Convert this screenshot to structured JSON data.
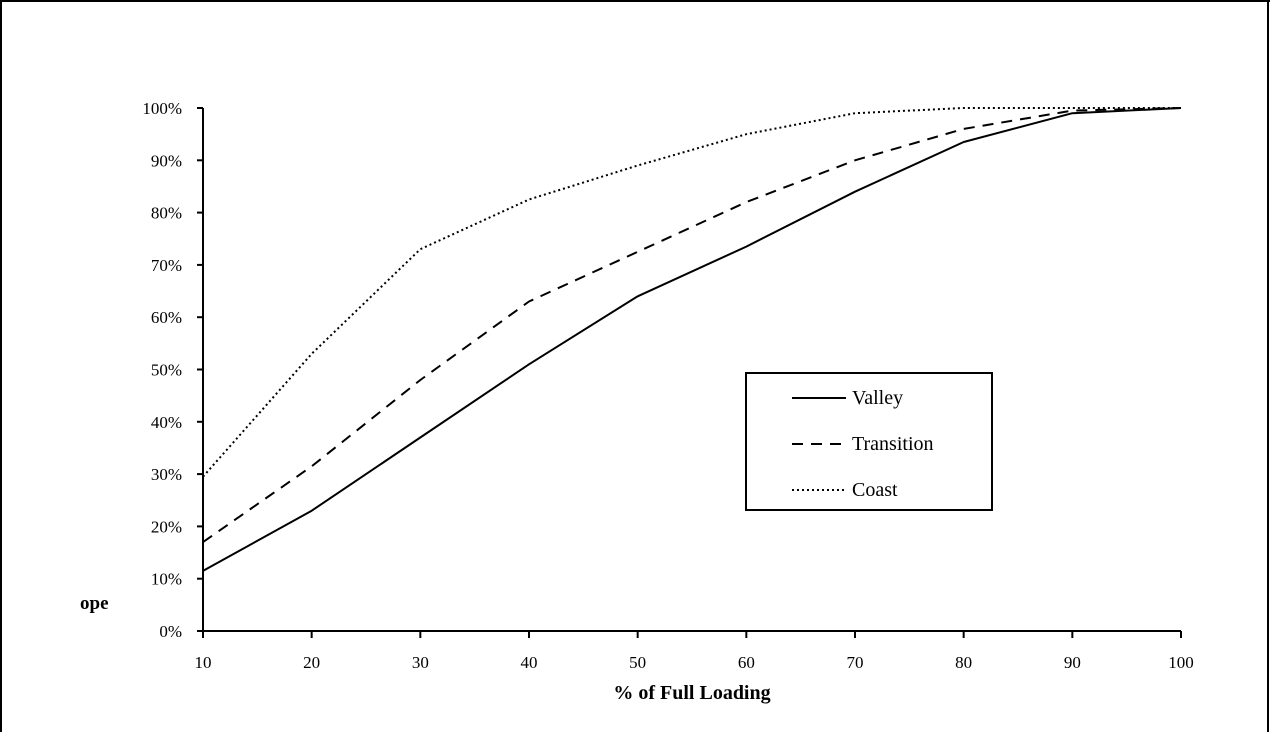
{
  "chart_data": {
    "type": "line",
    "title": "",
    "xlabel": "% of Full Loading",
    "ylabel": "",
    "x": [
      10,
      20,
      30,
      40,
      50,
      60,
      70,
      80,
      90,
      100
    ],
    "xlim": [
      10,
      100
    ],
    "ylim": [
      0,
      100
    ],
    "x_ticks": [
      "10",
      "20",
      "30",
      "40",
      "50",
      "60",
      "70",
      "80",
      "90",
      "100"
    ],
    "y_ticks": [
      "0%",
      "10%",
      "20%",
      "30%",
      "40%",
      "50%",
      "60%",
      "70%",
      "80%",
      "90%",
      "100%"
    ],
    "grid": false,
    "legend_position": "center-right",
    "series": [
      {
        "name": "Valley",
        "style": "solid",
        "values": [
          11.5,
          23,
          37,
          51,
          64,
          73.5,
          84,
          93.5,
          99,
          100
        ]
      },
      {
        "name": "Transition",
        "style": "dashed",
        "values": [
          17,
          31.5,
          48,
          63,
          72.5,
          82,
          90,
          96,
          99.5,
          100
        ]
      },
      {
        "name": "Coast",
        "style": "dotted",
        "values": [
          29.5,
          53,
          73,
          82.5,
          89,
          95,
          99,
          100,
          100,
          100
        ]
      }
    ],
    "side_label": "ope"
  },
  "colors": {
    "line": "#000000",
    "background": "#ffffff"
  }
}
